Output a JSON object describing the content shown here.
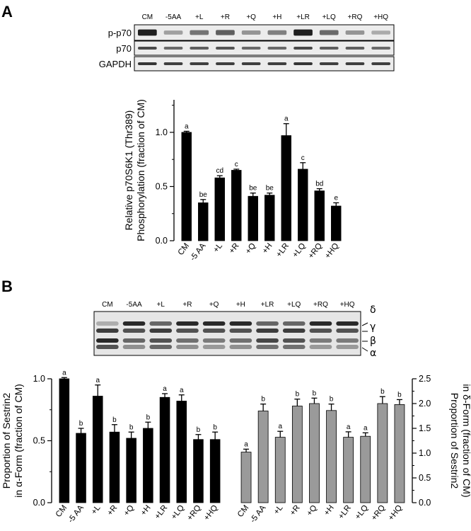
{
  "panel_labels": [
    "A",
    "B"
  ],
  "blot_a": {
    "lanes": [
      "CM",
      "-5AA",
      "+L",
      "+R",
      "+Q",
      "+H",
      "+LR",
      "+LQ",
      "+RQ",
      "+HQ"
    ],
    "rows": [
      "p-p70",
      "p70",
      "GAPDH"
    ],
    "band_intensity": {
      "p-p70": [
        0.95,
        0.35,
        0.55,
        0.65,
        0.4,
        0.5,
        0.95,
        0.6,
        0.4,
        0.3
      ],
      "p70": [
        0.75,
        0.6,
        0.65,
        0.7,
        0.6,
        0.6,
        0.75,
        0.65,
        0.65,
        0.6
      ],
      "GAPDH": [
        0.85,
        0.8,
        0.8,
        0.8,
        0.8,
        0.8,
        0.85,
        0.8,
        0.8,
        0.8
      ]
    }
  },
  "blot_b": {
    "lanes": [
      "CM",
      "-5AA",
      "+L",
      "+R",
      "+Q",
      "+H",
      "+LR",
      "+LQ",
      "+RQ",
      "+HQ"
    ],
    "form_labels": [
      "δ",
      "γ",
      "β",
      "α"
    ]
  },
  "chart_data": [
    {
      "type": "bar",
      "title": "",
      "categories": [
        "CM",
        "-5 AA",
        "+L",
        "+R",
        "+Q",
        "+H",
        "+LR",
        "+LQ",
        "+RQ",
        "+HQ"
      ],
      "values": [
        1.0,
        0.35,
        0.58,
        0.65,
        0.41,
        0.42,
        0.97,
        0.66,
        0.46,
        0.32
      ],
      "errors": [
        0.01,
        0.03,
        0.02,
        0.01,
        0.03,
        0.02,
        0.11,
        0.06,
        0.02,
        0.03
      ],
      "significance": [
        "a",
        "be",
        "cd",
        "c",
        "be",
        "be",
        "a",
        "c",
        "bd",
        "e"
      ],
      "ylabel_lines": [
        "Relative p70S6K1 (Thr389)",
        "Phosphorylation (fraction of CM)"
      ],
      "ylim": [
        0,
        1.3
      ],
      "yticks": [
        "0.0",
        "0.5",
        "1.0"
      ],
      "bar_color": "#000000",
      "grid": false
    },
    {
      "type": "bar",
      "title": "",
      "categories": [
        "CM",
        "-5 AA",
        "+L",
        "+R",
        "+Q",
        "+H",
        "+LR",
        "+LQ",
        "+RQ",
        "+HQ"
      ],
      "values": [
        1.0,
        0.56,
        0.86,
        0.57,
        0.52,
        0.6,
        0.85,
        0.82,
        0.51,
        0.51
      ],
      "errors": [
        0.01,
        0.04,
        0.09,
        0.06,
        0.05,
        0.05,
        0.03,
        0.05,
        0.04,
        0.06
      ],
      "significance": [
        "a",
        "b",
        "a",
        "b",
        "b",
        "b",
        "a",
        "a",
        "b",
        "b"
      ],
      "ylabel_lines": [
        "Proportion of Sestrin2",
        "in α-Form (fraction of CM)"
      ],
      "ylim": [
        0,
        1.0
      ],
      "yticks": [
        "0.0",
        "0.5",
        "1.0"
      ],
      "bar_color": "#000000",
      "grid": false
    },
    {
      "type": "bar",
      "title": "",
      "categories": [
        "CM",
        "-5 AA",
        "+L",
        "+R",
        "+Q",
        "+H",
        "+LR",
        "+LQ",
        "+RQ",
        "+HQ"
      ],
      "values": [
        1.02,
        1.85,
        1.32,
        1.95,
        2.0,
        1.86,
        1.32,
        1.34,
        2.0,
        1.98
      ],
      "errors": [
        0.06,
        0.14,
        0.12,
        0.14,
        0.11,
        0.13,
        0.11,
        0.07,
        0.14,
        0.1
      ],
      "significance": [
        "a",
        "b",
        "a",
        "b",
        "b",
        "b",
        "a",
        "a",
        "b",
        "b"
      ],
      "ylabel_lines": [
        "Proportion of Sestrin2",
        "in δ-Form (fraction of CM)"
      ],
      "ylim": [
        0,
        2.5
      ],
      "yticks": [
        "0.0",
        "0.5",
        "1.0",
        "1.5",
        "2.0",
        "2.5"
      ],
      "bar_color": "#9a9a9a",
      "grid": false
    }
  ]
}
